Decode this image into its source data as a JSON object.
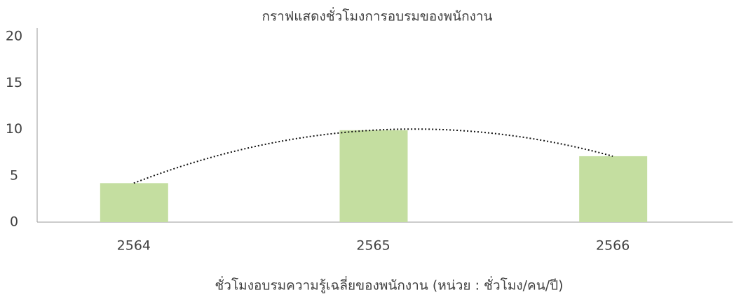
{
  "chart_data": {
    "type": "bar",
    "title": "กราฟแสดงชั่วโมงการอบรมของพนักงาน",
    "x_label": "ชั่วโมงอบรมความรู้เฉลี่ยของพนักงาน (หน่วย : ชั่วโมง/คน/ปี)",
    "categories": [
      "2564",
      "2565",
      "2566"
    ],
    "values": [
      4.2,
      9.9,
      7.1
    ],
    "color": "#c4dea0",
    "ylim": [
      0,
      20
    ],
    "yticks": [
      0,
      5,
      10,
      15,
      20
    ],
    "grid": false,
    "trendline": true
  }
}
